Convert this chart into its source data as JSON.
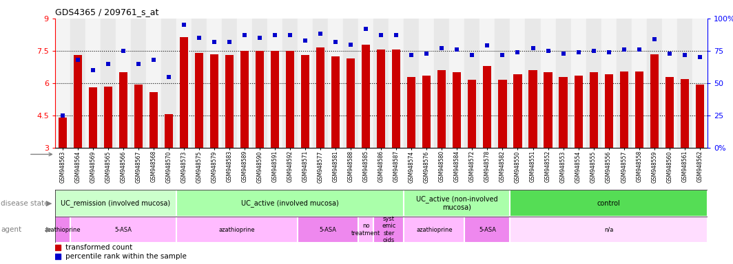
{
  "title": "GDS4365 / 209761_s_at",
  "samples": [
    "GSM948563",
    "GSM948564",
    "GSM948569",
    "GSM948565",
    "GSM948566",
    "GSM948567",
    "GSM948568",
    "GSM948570",
    "GSM948573",
    "GSM948575",
    "GSM948579",
    "GSM948583",
    "GSM948589",
    "GSM948590",
    "GSM948591",
    "GSM948592",
    "GSM948571",
    "GSM948577",
    "GSM948581",
    "GSM948588",
    "GSM948585",
    "GSM948586",
    "GSM948587",
    "GSM948574",
    "GSM948576",
    "GSM948580",
    "GSM948584",
    "GSM948572",
    "GSM948578",
    "GSM948582",
    "GSM948550",
    "GSM948551",
    "GSM948552",
    "GSM948553",
    "GSM948554",
    "GSM948555",
    "GSM948556",
    "GSM948557",
    "GSM948558",
    "GSM948559",
    "GSM948560",
    "GSM948561",
    "GSM948562"
  ],
  "bar_values": [
    4.4,
    7.3,
    5.8,
    5.85,
    6.5,
    5.95,
    5.6,
    4.55,
    8.15,
    7.4,
    7.35,
    7.3,
    7.5,
    7.5,
    7.5,
    7.5,
    7.3,
    7.65,
    7.25,
    7.15,
    7.8,
    7.55,
    7.55,
    6.3,
    6.35,
    6.6,
    6.5,
    6.15,
    6.8,
    6.15,
    6.4,
    6.6,
    6.5,
    6.3,
    6.35,
    6.5,
    6.4,
    6.55,
    6.55,
    7.35,
    6.3,
    6.2,
    5.95
  ],
  "percentile_values": [
    25,
    68,
    60,
    65,
    75,
    65,
    68,
    55,
    95,
    85,
    82,
    82,
    87,
    85,
    87,
    87,
    83,
    88,
    82,
    80,
    92,
    87,
    87,
    72,
    73,
    77,
    76,
    72,
    79,
    72,
    74,
    77,
    75,
    73,
    74,
    75,
    74,
    76,
    76,
    84,
    73,
    72,
    70
  ],
  "ylim_left": [
    3,
    9
  ],
  "yticks_left": [
    3,
    4.5,
    6,
    7.5,
    9
  ],
  "ytick_labels_left": [
    "3",
    "4.5",
    "6",
    "7.5",
    "9"
  ],
  "ylim_right": [
    0,
    100
  ],
  "yticks_right": [
    0,
    25,
    50,
    75,
    100
  ],
  "ytick_labels_right": [
    "0%",
    "25",
    "50",
    "75",
    "100%"
  ],
  "bar_color": "#cc0000",
  "dot_color": "#0000cc",
  "hline_y": [
    4.5,
    6.0,
    7.5
  ],
  "disease_state_groups": [
    {
      "label": "UC_remission (involved mucosa)",
      "start": 0,
      "end": 8,
      "color": "#ccffcc"
    },
    {
      "label": "UC_active (involved mucosa)",
      "start": 8,
      "end": 23,
      "color": "#aaffaa"
    },
    {
      "label": "UC_active (non-involved\nmucosa)",
      "start": 23,
      "end": 30,
      "color": "#aaffaa"
    },
    {
      "label": "control",
      "start": 30,
      "end": 43,
      "color": "#55dd55"
    }
  ],
  "agent_groups": [
    {
      "label": "azathioprine",
      "start": 0,
      "end": 1,
      "color": "#ee88ee"
    },
    {
      "label": "5-ASA",
      "start": 1,
      "end": 8,
      "color": "#ffbbff"
    },
    {
      "label": "azathioprine",
      "start": 8,
      "end": 16,
      "color": "#ffbbff"
    },
    {
      "label": "5-ASA",
      "start": 16,
      "end": 20,
      "color": "#ee88ee"
    },
    {
      "label": "no\ntreatment",
      "start": 20,
      "end": 21,
      "color": "#ffbbff"
    },
    {
      "label": "syst\nemic\nster\noids",
      "start": 21,
      "end": 23,
      "color": "#ee88ee"
    },
    {
      "label": "azathioprine",
      "start": 23,
      "end": 27,
      "color": "#ffbbff"
    },
    {
      "label": "5-ASA",
      "start": 27,
      "end": 30,
      "color": "#ee88ee"
    },
    {
      "label": "n/a",
      "start": 30,
      "end": 43,
      "color": "#ffddff"
    }
  ],
  "bg_color_even": "#f4f4f4",
  "bg_color_odd": "#e8e8e8",
  "spine_color_left": "red",
  "spine_color_right": "blue"
}
